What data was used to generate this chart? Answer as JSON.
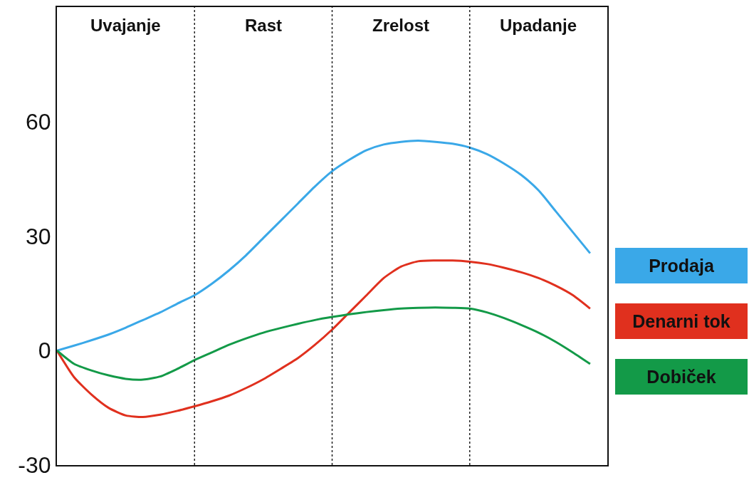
{
  "chart_data": {
    "type": "line",
    "categories": [
      null,
      null,
      null,
      null,
      null,
      null,
      null,
      null,
      null,
      null,
      null,
      null,
      null,
      null,
      null,
      null,
      null,
      null,
      null,
      null,
      null,
      null,
      null,
      null,
      null,
      null,
      null,
      null,
      null,
      null,
      null,
      null
    ],
    "series": [
      {
        "name": "Prodaja",
        "color": "#3aa8e8",
        "values": [
          0,
          1.3,
          2.7,
          4.2,
          6,
          8,
          10,
          12.3,
          14.5,
          17.5,
          21,
          25,
          29.5,
          34,
          38.5,
          43,
          47,
          50,
          52.5,
          54,
          54.7,
          55,
          54.7,
          54.2,
          53.2,
          51.5,
          49,
          46,
          42,
          36.5,
          31,
          25.5
        ]
      },
      {
        "name": "Denarni tok",
        "color": "#e0301e",
        "values": [
          0,
          -7,
          -11.5,
          -15,
          -17,
          -17.4,
          -16.8,
          -15.8,
          -14.6,
          -13.3,
          -11.8,
          -9.8,
          -7.5,
          -4.8,
          -2,
          1.5,
          5.5,
          10,
          14.5,
          19,
          22,
          23.4,
          23.6,
          23.6,
          23.3,
          22.7,
          21.7,
          20.5,
          19,
          17,
          14.5,
          11
        ]
      },
      {
        "name": "Dobiček",
        "color": "#139a48",
        "values": [
          0,
          -3.5,
          -5.2,
          -6.5,
          -7.4,
          -7.6,
          -6.8,
          -4.8,
          -2.5,
          -0.5,
          1.5,
          3.2,
          4.7,
          5.9,
          7,
          8,
          8.8,
          9.5,
          10.1,
          10.6,
          11,
          11.2,
          11.3,
          11.2,
          11,
          10,
          8.5,
          6.7,
          4.7,
          2.3,
          -0.5,
          -3.5
        ]
      }
    ],
    "ylim": [
      -30,
      90
    ],
    "yticks": [
      -30,
      0,
      30,
      60
    ],
    "grid": "x",
    "legend": "right",
    "tick_labels": "y",
    "line_style": "solid",
    "marker": "none",
    "annotations": [
      "Uvajanje",
      "Rast",
      "Zrelost",
      "Upadanje"
    ]
  }
}
